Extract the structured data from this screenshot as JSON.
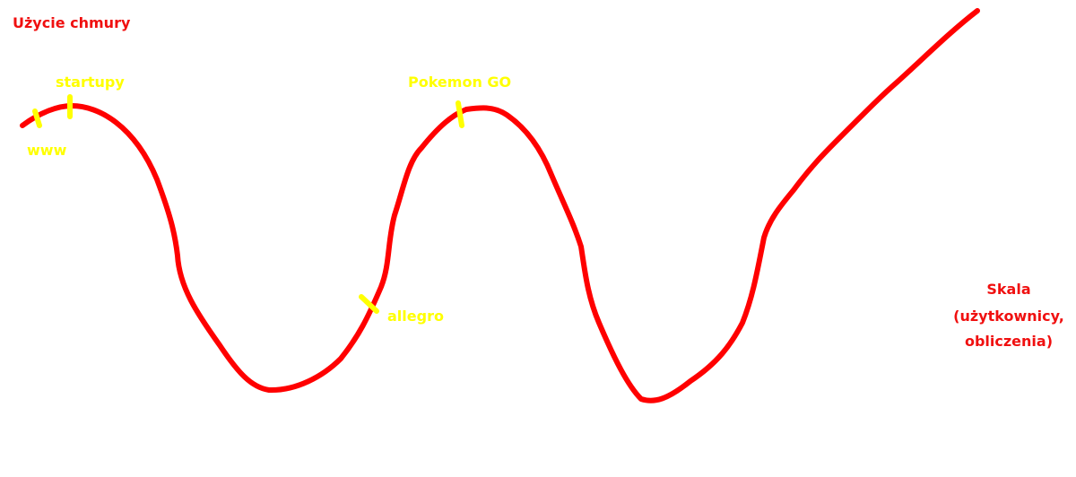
{
  "title": "Użycie chmury",
  "annotations": [
    "startupy",
    "www",
    "Pokemon GO",
    "allegro"
  ],
  "axis_label": [
    "Skala",
    "(użytkownicy,",
    "obliczenia)"
  ]
}
